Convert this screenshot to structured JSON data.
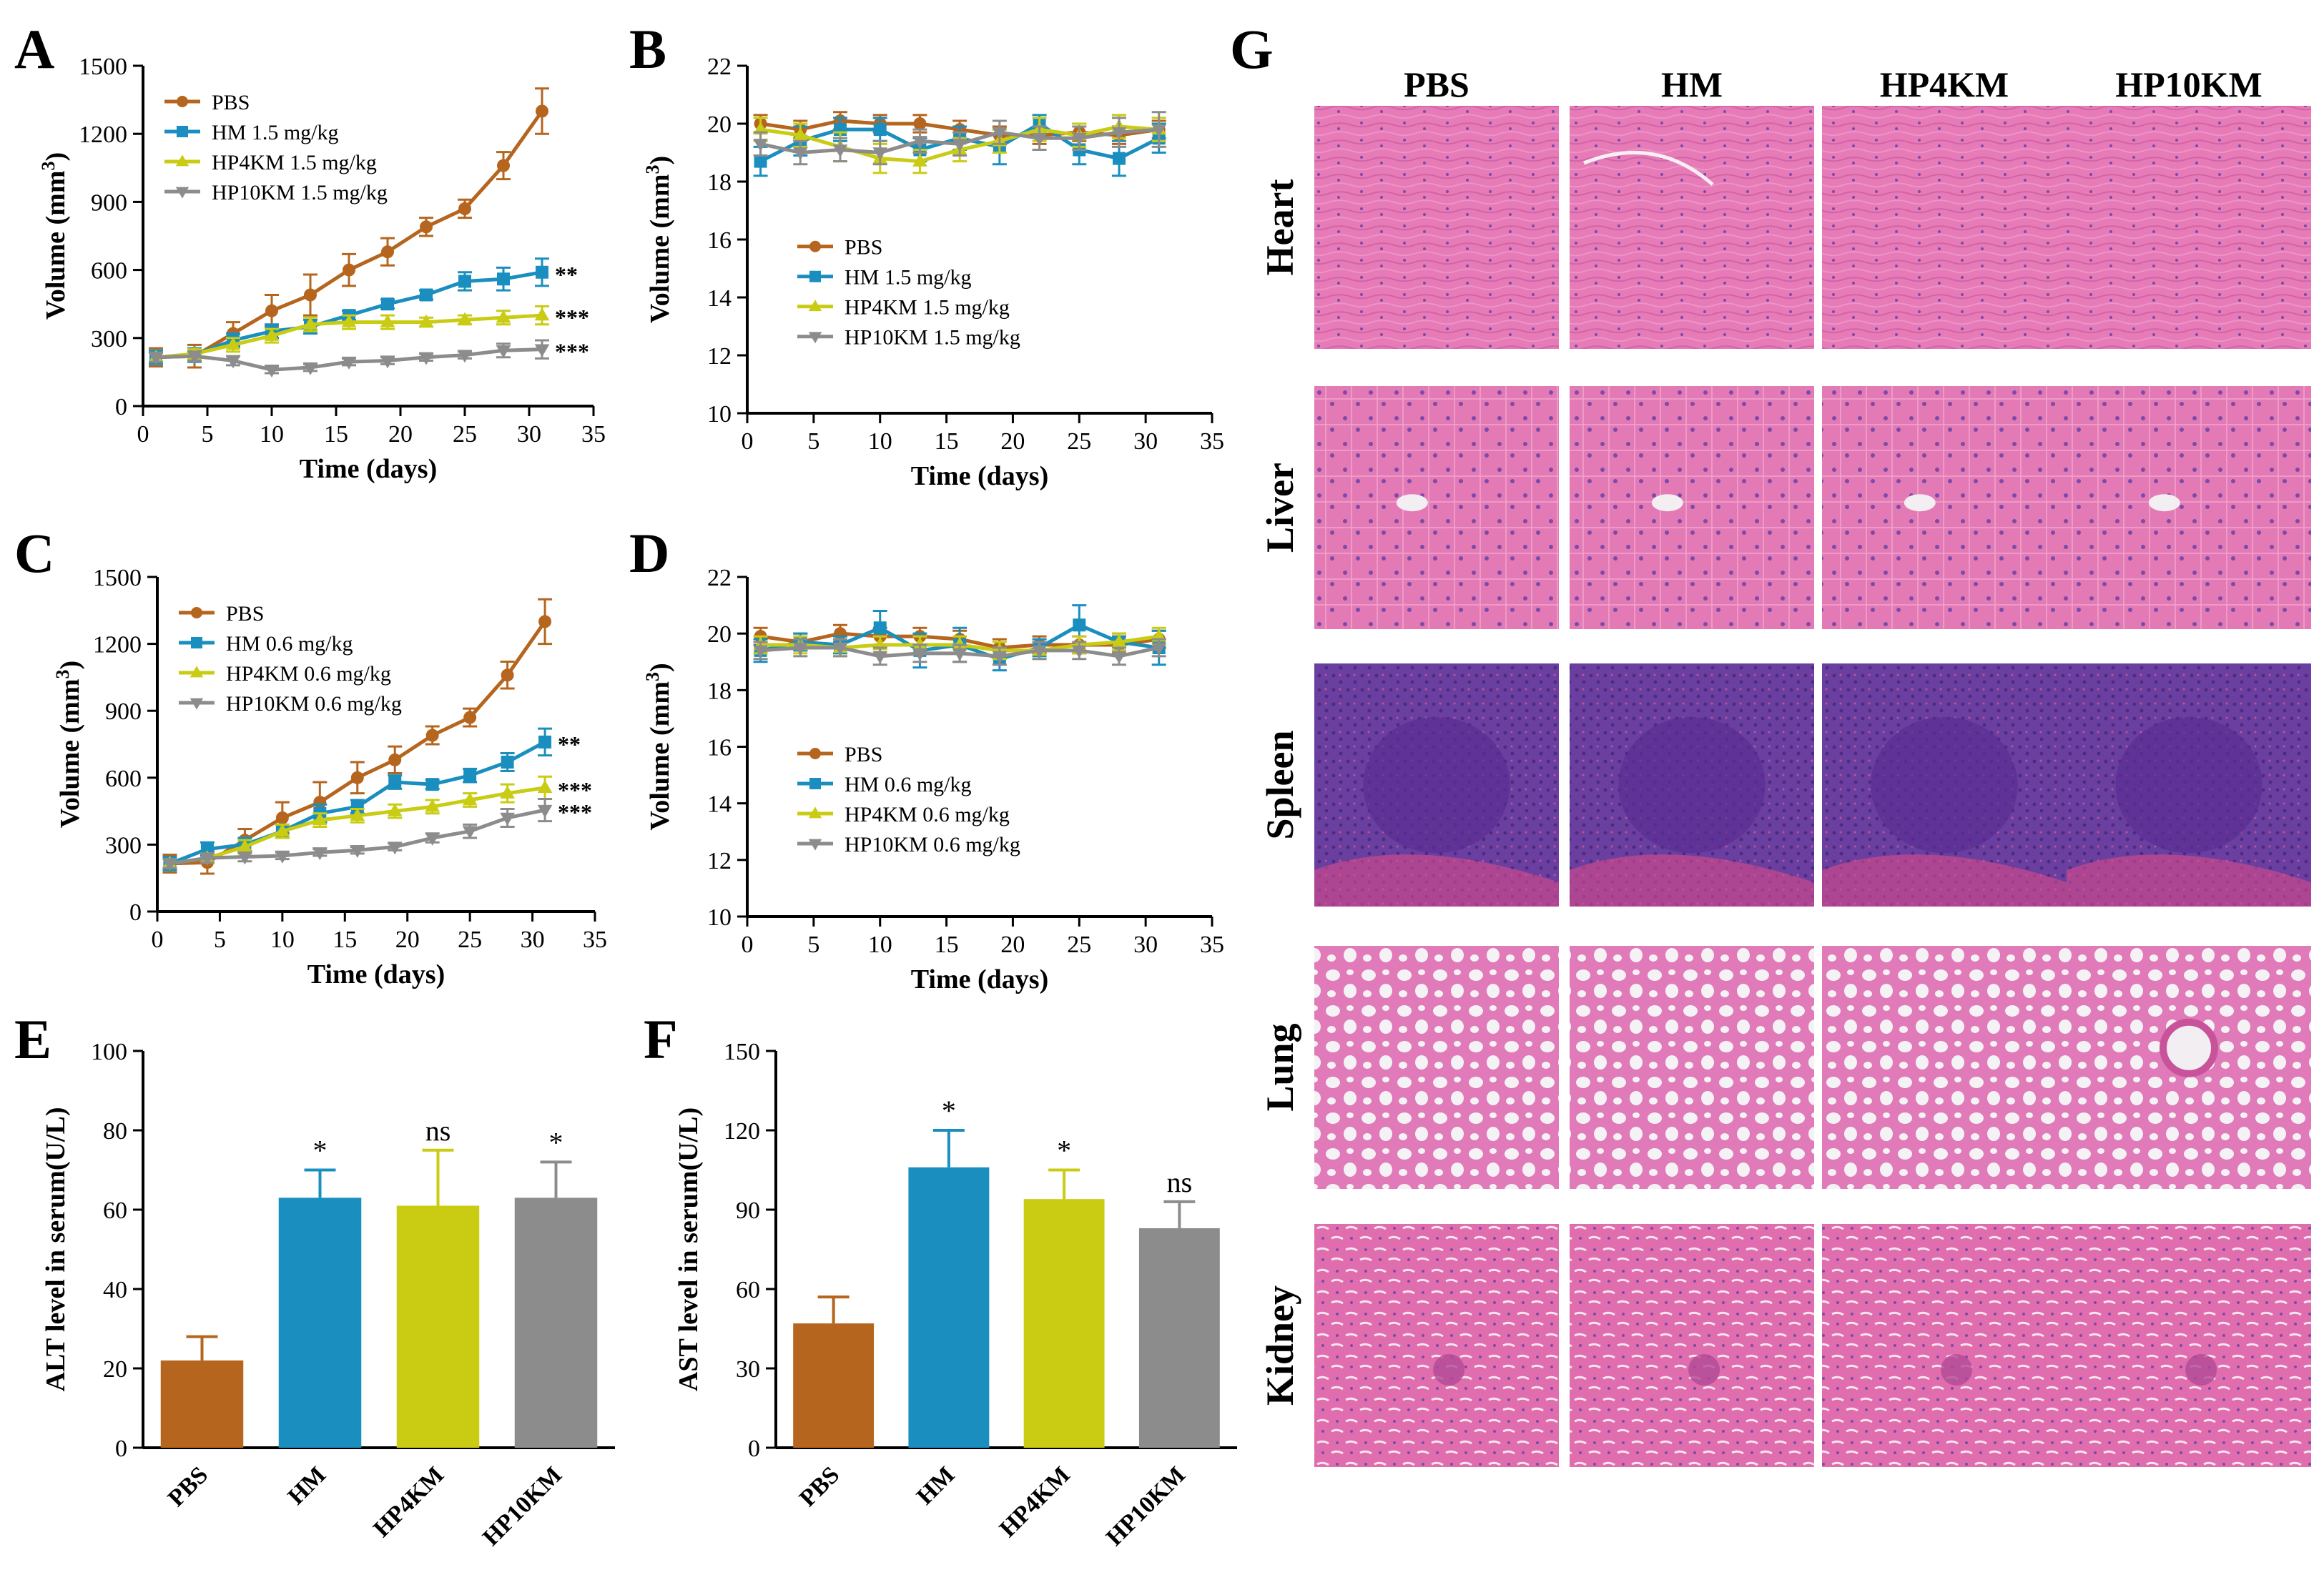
{
  "colors": {
    "PBS": "#b5651d",
    "HM": "#1a8fbf",
    "HP4KM": "#c9cc12",
    "HP10KM": "#8c8c8c",
    "tissue_pink": "#e377b3",
    "tissue_dark": "#d86aa8",
    "spleen_purple": "#6a3fa0",
    "spleen_red": "#d94b8a"
  },
  "chart_data": [
    {
      "id": "A",
      "panel_label": "A",
      "type": "line",
      "xlabel": "Time (days)",
      "ylabel": "Volume (mm3)",
      "ylabel_main": "Volume (mm",
      "ylabel_sup": "3",
      "ylabel_end": ")",
      "xlim": [
        0,
        35
      ],
      "ylim": [
        0,
        1500
      ],
      "xticks": [
        "0",
        "5",
        "10",
        "15",
        "20",
        "25",
        "30",
        "35"
      ],
      "yticks": [
        "0",
        "300",
        "600",
        "900",
        "1200",
        "1500"
      ],
      "x": [
        1,
        4,
        7,
        10,
        13,
        16,
        19,
        22,
        25,
        28,
        31
      ],
      "series": [
        {
          "name": "PBS",
          "key": "PBS",
          "marker": "circle",
          "values": [
            215,
            220,
            320,
            420,
            490,
            600,
            680,
            790,
            870,
            1060,
            1300
          ],
          "errors": [
            40,
            50,
            50,
            70,
            90,
            70,
            60,
            40,
            40,
            60,
            100
          ]
        },
        {
          "name": "HM 1.5 mg/kg",
          "key": "HM",
          "marker": "square",
          "values": [
            215,
            225,
            290,
            330,
            350,
            400,
            450,
            490,
            550,
            560,
            590
          ],
          "errors": [
            30,
            30,
            30,
            30,
            30,
            20,
            20,
            20,
            40,
            50,
            60
          ]
        },
        {
          "name": "HP4KM 1.5 mg/kg",
          "key": "HP4KM",
          "marker": "triangle",
          "values": [
            215,
            230,
            270,
            310,
            360,
            370,
            370,
            370,
            380,
            390,
            400
          ],
          "errors": [
            20,
            20,
            30,
            30,
            30,
            30,
            30,
            20,
            20,
            30,
            40
          ]
        },
        {
          "name": "HP10KM 1.5 mg/kg",
          "key": "HP10KM",
          "marker": "triangle-down",
          "values": [
            215,
            220,
            200,
            160,
            170,
            195,
            200,
            215,
            225,
            245,
            250
          ],
          "errors": [
            20,
            20,
            20,
            15,
            15,
            15,
            15,
            15,
            15,
            30,
            40
          ]
        }
      ],
      "significance": [
        {
          "series": "HM",
          "text": "**"
        },
        {
          "series": "HP4KM",
          "text": "***"
        },
        {
          "series": "HP10KM",
          "text": "***"
        }
      ],
      "legend_position": "top-left"
    },
    {
      "id": "B",
      "panel_label": "B",
      "type": "line",
      "xlabel": "Time (days)",
      "ylabel": "Volume (mm3)",
      "ylabel_main": "Volume (mm",
      "ylabel_sup": "3",
      "ylabel_end": ")",
      "xlim": [
        0,
        35
      ],
      "ylim": [
        10,
        22
      ],
      "xticks": [
        "0",
        "5",
        "10",
        "15",
        "20",
        "25",
        "30",
        "35"
      ],
      "yticks": [
        "10",
        "12",
        "14",
        "16",
        "18",
        "20",
        "22"
      ],
      "x": [
        1,
        4,
        7,
        10,
        13,
        16,
        19,
        22,
        25,
        28,
        31
      ],
      "series": [
        {
          "name": "PBS",
          "key": "PBS",
          "marker": "circle",
          "values": [
            20.0,
            19.8,
            20.1,
            20.0,
            20.0,
            19.8,
            19.6,
            19.6,
            19.7,
            19.6,
            19.8
          ],
          "errors": [
            0.3,
            0.3,
            0.3,
            0.3,
            0.3,
            0.3,
            0.3,
            0.3,
            0.3,
            0.3,
            0.3
          ]
        },
        {
          "name": "HM 1.5 mg/kg",
          "key": "HM",
          "marker": "square",
          "values": [
            18.7,
            19.4,
            19.8,
            19.8,
            19.1,
            19.5,
            19.2,
            20.0,
            19.1,
            18.8,
            19.5
          ],
          "errors": [
            0.5,
            0.5,
            0.4,
            0.4,
            0.4,
            0.4,
            0.6,
            0.3,
            0.5,
            0.6,
            0.5
          ]
        },
        {
          "name": "HP4KM 1.5 mg/kg",
          "key": "HP4KM",
          "marker": "triangle",
          "values": [
            19.8,
            19.6,
            19.2,
            18.8,
            18.7,
            19.1,
            19.4,
            19.8,
            19.6,
            19.9,
            19.8
          ],
          "errors": [
            0.4,
            0.4,
            0.5,
            0.5,
            0.4,
            0.4,
            0.4,
            0.4,
            0.4,
            0.4,
            0.4
          ]
        },
        {
          "name": "HP10KM 1.5 mg/kg",
          "key": "HP10KM",
          "marker": "triangle-down",
          "values": [
            19.3,
            19.0,
            19.1,
            19.0,
            19.4,
            19.3,
            19.7,
            19.5,
            19.5,
            19.7,
            19.8
          ],
          "errors": [
            0.4,
            0.4,
            0.4,
            0.4,
            0.4,
            0.4,
            0.4,
            0.4,
            0.4,
            0.5,
            0.6
          ]
        }
      ],
      "significance": [],
      "legend_position": "center"
    },
    {
      "id": "C",
      "panel_label": "C",
      "type": "line",
      "xlabel": "Time (days)",
      "ylabel": "Volume (mm3)",
      "ylabel_main": "Volume (mm",
      "ylabel_sup": "3",
      "ylabel_end": ")",
      "xlim": [
        0,
        35
      ],
      "ylim": [
        0,
        1500
      ],
      "xticks": [
        "0",
        "5",
        "10",
        "15",
        "20",
        "25",
        "30",
        "35"
      ],
      "yticks": [
        "0",
        "300",
        "600",
        "900",
        "1200",
        "1500"
      ],
      "x": [
        1,
        4,
        7,
        10,
        13,
        16,
        19,
        22,
        25,
        28,
        31
      ],
      "series": [
        {
          "name": "PBS",
          "key": "PBS",
          "marker": "circle",
          "values": [
            215,
            220,
            320,
            420,
            490,
            600,
            680,
            790,
            870,
            1060,
            1300
          ],
          "errors": [
            40,
            50,
            50,
            70,
            90,
            70,
            60,
            40,
            40,
            60,
            100
          ]
        },
        {
          "name": "HM 0.6 mg/kg",
          "key": "HM",
          "marker": "square",
          "values": [
            215,
            280,
            300,
            360,
            440,
            470,
            580,
            570,
            610,
            670,
            760
          ],
          "errors": [
            30,
            30,
            30,
            30,
            40,
            30,
            30,
            20,
            30,
            40,
            60
          ]
        },
        {
          "name": "HP4KM 0.6 mg/kg",
          "key": "HP4KM",
          "marker": "triangle",
          "values": [
            215,
            240,
            290,
            360,
            410,
            430,
            450,
            470,
            500,
            530,
            555
          ],
          "errors": [
            20,
            20,
            30,
            30,
            30,
            30,
            30,
            30,
            30,
            40,
            50
          ]
        },
        {
          "name": "HP10KM 0.6 mg/kg",
          "key": "HP10KM",
          "marker": "triangle-down",
          "values": [
            215,
            240,
            245,
            250,
            265,
            275,
            290,
            330,
            360,
            420,
            455
          ],
          "errors": [
            20,
            20,
            20,
            15,
            15,
            15,
            15,
            20,
            30,
            40,
            50
          ]
        }
      ],
      "significance": [
        {
          "series": "HM",
          "text": "**"
        },
        {
          "series": "HP4KM",
          "text": "***"
        },
        {
          "series": "HP10KM",
          "text": "***"
        }
      ],
      "legend_position": "top-left"
    },
    {
      "id": "D",
      "panel_label": "D",
      "type": "line",
      "xlabel": "Time (days)",
      "ylabel": "Volume (mm3)",
      "ylabel_main": "Volume (mm",
      "ylabel_sup": "3",
      "ylabel_end": ")",
      "xlim": [
        0,
        35
      ],
      "ylim": [
        10,
        22
      ],
      "xticks": [
        "0",
        "5",
        "10",
        "15",
        "20",
        "25",
        "30",
        "35"
      ],
      "yticks": [
        "10",
        "12",
        "14",
        "16",
        "18",
        "20",
        "22"
      ],
      "x": [
        1,
        4,
        7,
        10,
        13,
        16,
        19,
        22,
        25,
        28,
        31
      ],
      "series": [
        {
          "name": "PBS",
          "key": "PBS",
          "marker": "circle",
          "values": [
            19.9,
            19.7,
            20.0,
            19.9,
            19.9,
            19.8,
            19.5,
            19.6,
            19.6,
            19.6,
            19.8
          ],
          "errors": [
            0.3,
            0.3,
            0.3,
            0.3,
            0.3,
            0.3,
            0.3,
            0.3,
            0.3,
            0.3,
            0.3
          ]
        },
        {
          "name": "HM 0.6 mg/kg",
          "key": "HM",
          "marker": "square",
          "values": [
            19.4,
            19.7,
            19.6,
            20.2,
            19.4,
            19.6,
            19.1,
            19.5,
            20.3,
            19.7,
            19.5
          ],
          "errors": [
            0.4,
            0.3,
            0.3,
            0.6,
            0.6,
            0.6,
            0.4,
            0.3,
            0.7,
            0.3,
            0.6
          ]
        },
        {
          "name": "HP4KM 0.6 mg/kg",
          "key": "HP4KM",
          "marker": "triangle",
          "values": [
            19.6,
            19.6,
            19.5,
            19.6,
            19.6,
            19.6,
            19.4,
            19.4,
            19.6,
            19.7,
            19.9
          ],
          "errors": [
            0.3,
            0.3,
            0.3,
            0.3,
            0.3,
            0.3,
            0.3,
            0.3,
            0.3,
            0.3,
            0.3
          ]
        },
        {
          "name": "HP10KM 0.6 mg/kg",
          "key": "HP10KM",
          "marker": "triangle-down",
          "values": [
            19.4,
            19.5,
            19.5,
            19.2,
            19.3,
            19.3,
            19.2,
            19.4,
            19.4,
            19.2,
            19.5
          ],
          "errors": [
            0.3,
            0.3,
            0.3,
            0.3,
            0.3,
            0.3,
            0.3,
            0.3,
            0.3,
            0.3,
            0.3
          ]
        }
      ],
      "significance": [],
      "legend_position": "center"
    },
    {
      "id": "E",
      "panel_label": "E",
      "type": "bar",
      "xlabel": "",
      "ylabel": "ALT level in serum(U/L)",
      "ylim": [
        0,
        100
      ],
      "yticks": [
        "0",
        "20",
        "40",
        "60",
        "80",
        "100"
      ],
      "categories": [
        "PBS",
        "HM",
        "HP4KM",
        "HP10KM"
      ],
      "values": [
        22,
        63,
        61,
        63
      ],
      "errors": [
        6,
        7,
        14,
        9
      ],
      "significance": [
        "",
        "*",
        "ns",
        "*"
      ]
    },
    {
      "id": "F",
      "panel_label": "F",
      "type": "bar",
      "xlabel": "",
      "ylabel": "AST level in serum(U/L)",
      "ylim": [
        0,
        150
      ],
      "yticks": [
        "0",
        "30",
        "60",
        "90",
        "120",
        "150"
      ],
      "categories": [
        "PBS",
        "HM",
        "HP4KM",
        "HP10KM"
      ],
      "values": [
        47,
        106,
        94,
        83
      ],
      "errors": [
        10,
        14,
        11,
        10
      ],
      "significance": [
        "",
        "*",
        "*",
        "ns"
      ]
    }
  ],
  "histology": {
    "panel_label": "G",
    "columns": [
      "PBS",
      "HM",
      "HP4KM",
      "HP10KM"
    ],
    "rows": [
      "Heart",
      "Liver",
      "Spleen",
      "Lung",
      "Kidney"
    ]
  }
}
